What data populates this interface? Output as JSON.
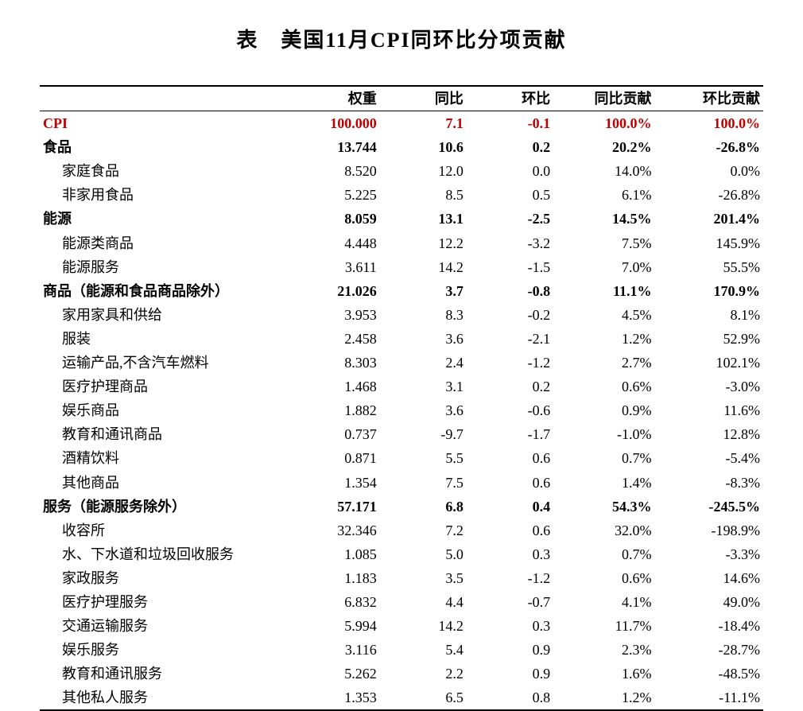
{
  "title": "表　美国11月CPI同环比分项贡献",
  "columns": [
    "",
    "权重",
    "同比",
    "环比",
    "同比贡献",
    "环比贡献"
  ],
  "colClasses": [
    "col-name",
    "col-w",
    "col-yoy",
    "col-mom",
    "col-yc",
    "col-mc"
  ],
  "rows": [
    {
      "style": "row-red",
      "indent": 0,
      "cells": [
        "CPI",
        "100.000",
        "7.1",
        "-0.1",
        "100.0%",
        "100.0%"
      ]
    },
    {
      "style": "row-bold",
      "indent": 0,
      "cells": [
        "食品",
        "13.744",
        "10.6",
        "0.2",
        "20.2%",
        "-26.8%"
      ]
    },
    {
      "style": "",
      "indent": 1,
      "cells": [
        "家庭食品",
        "8.520",
        "12.0",
        "0.0",
        "14.0%",
        "0.0%"
      ]
    },
    {
      "style": "",
      "indent": 1,
      "cells": [
        "非家用食品",
        "5.225",
        "8.5",
        "0.5",
        "6.1%",
        "-26.8%"
      ]
    },
    {
      "style": "row-bold",
      "indent": 0,
      "cells": [
        "能源",
        "8.059",
        "13.1",
        "-2.5",
        "14.5%",
        "201.4%"
      ]
    },
    {
      "style": "",
      "indent": 1,
      "cells": [
        "能源类商品",
        "4.448",
        "12.2",
        "-3.2",
        "7.5%",
        "145.9%"
      ]
    },
    {
      "style": "",
      "indent": 1,
      "cells": [
        "能源服务",
        "3.611",
        "14.2",
        "-1.5",
        "7.0%",
        "55.5%"
      ]
    },
    {
      "style": "row-bold",
      "indent": 0,
      "cells": [
        "商品（能源和食品商品除外）",
        "21.026",
        "3.7",
        "-0.8",
        "11.1%",
        "170.9%"
      ]
    },
    {
      "style": "",
      "indent": 1,
      "cells": [
        "家用家具和供给",
        "3.953",
        "8.3",
        "-0.2",
        "4.5%",
        "8.1%"
      ]
    },
    {
      "style": "",
      "indent": 1,
      "cells": [
        "服装",
        "2.458",
        "3.6",
        "-2.1",
        "1.2%",
        "52.9%"
      ]
    },
    {
      "style": "",
      "indent": 1,
      "cells": [
        "运输产品,不含汽车燃料",
        "8.303",
        "2.4",
        "-1.2",
        "2.7%",
        "102.1%"
      ]
    },
    {
      "style": "",
      "indent": 1,
      "cells": [
        "医疗护理商品",
        "1.468",
        "3.1",
        "0.2",
        "0.6%",
        "-3.0%"
      ]
    },
    {
      "style": "",
      "indent": 1,
      "cells": [
        "娱乐商品",
        "1.882",
        "3.6",
        "-0.6",
        "0.9%",
        "11.6%"
      ]
    },
    {
      "style": "",
      "indent": 1,
      "cells": [
        "教育和通讯商品",
        "0.737",
        "-9.7",
        "-1.7",
        "-1.0%",
        "12.8%"
      ]
    },
    {
      "style": "",
      "indent": 1,
      "cells": [
        "酒精饮料",
        "0.871",
        "5.5",
        "0.6",
        "0.7%",
        "-5.4%"
      ]
    },
    {
      "style": "",
      "indent": 1,
      "cells": [
        "其他商品",
        "1.354",
        "7.5",
        "0.6",
        "1.4%",
        "-8.3%"
      ]
    },
    {
      "style": "row-bold",
      "indent": 0,
      "cells": [
        "服务（能源服务除外）",
        "57.171",
        "6.8",
        "0.4",
        "54.3%",
        "-245.5%"
      ]
    },
    {
      "style": "",
      "indent": 1,
      "cells": [
        "收容所",
        "32.346",
        "7.2",
        "0.6",
        "32.0%",
        "-198.9%"
      ]
    },
    {
      "style": "",
      "indent": 1,
      "cells": [
        "水、下水道和垃圾回收服务",
        "1.085",
        "5.0",
        "0.3",
        "0.7%",
        "-3.3%"
      ]
    },
    {
      "style": "",
      "indent": 1,
      "cells": [
        "家政服务",
        "1.183",
        "3.5",
        "-1.2",
        "0.6%",
        "14.6%"
      ]
    },
    {
      "style": "",
      "indent": 1,
      "cells": [
        "医疗护理服务",
        "6.832",
        "4.4",
        "-0.7",
        "4.1%",
        "49.0%"
      ]
    },
    {
      "style": "",
      "indent": 1,
      "cells": [
        "交通运输服务",
        "5.994",
        "14.2",
        "0.3",
        "11.7%",
        "-18.4%"
      ]
    },
    {
      "style": "",
      "indent": 1,
      "cells": [
        "娱乐服务",
        "3.116",
        "5.4",
        "0.9",
        "2.3%",
        "-28.7%"
      ]
    },
    {
      "style": "",
      "indent": 1,
      "cells": [
        "教育和通讯服务",
        "5.262",
        "2.2",
        "0.9",
        "1.6%",
        "-48.5%"
      ]
    },
    {
      "style": "",
      "indent": 1,
      "cells": [
        "其他私人服务",
        "1.353",
        "6.5",
        "0.8",
        "1.2%",
        "-11.1%"
      ]
    }
  ],
  "styling": {
    "text_color": "#000000",
    "highlight_color": "#c00000",
    "background_color": "#ffffff",
    "border_color": "#000000",
    "title_fontsize": 26,
    "body_fontsize": 18
  }
}
